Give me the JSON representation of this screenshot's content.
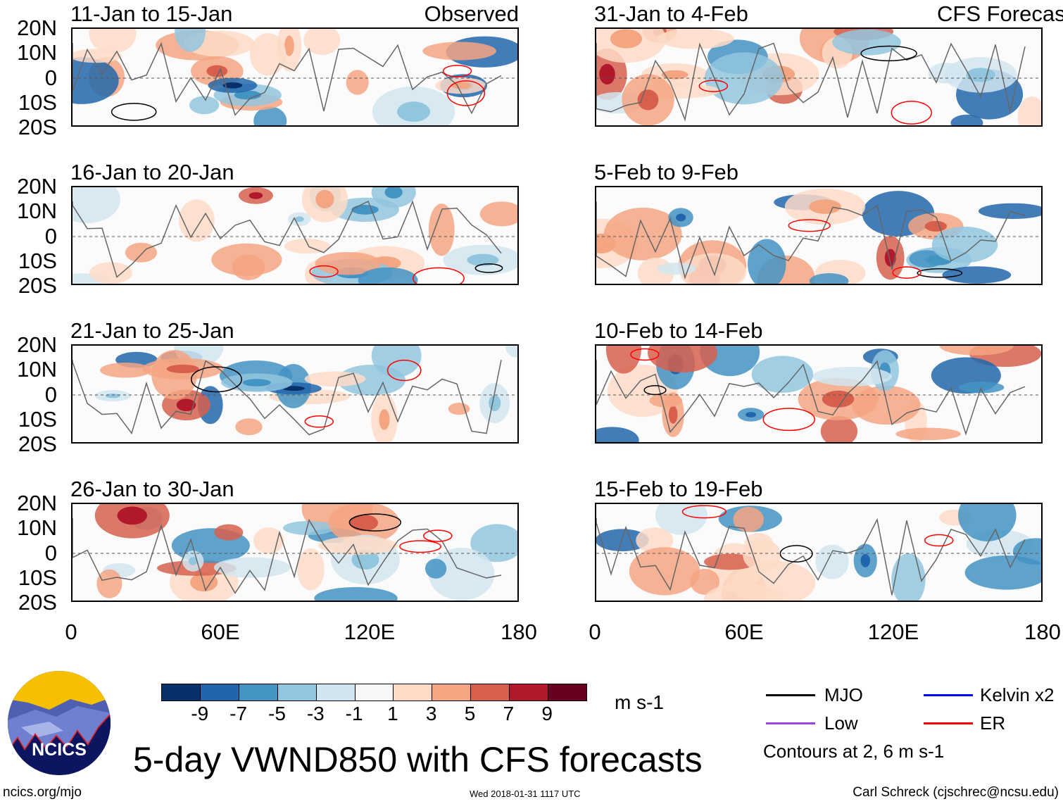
{
  "panels_left": [
    {
      "title": "11-Jan to 15-Jan",
      "label": "Observed"
    },
    {
      "title": "16-Jan to 20-Jan"
    },
    {
      "title": "21-Jan to 25-Jan"
    },
    {
      "title": "26-Jan to 30-Jan"
    }
  ],
  "panels_right": [
    {
      "title": "31-Jan to 4-Feb",
      "label": "CFS Forecast"
    },
    {
      "title": "5-Feb to 9-Feb"
    },
    {
      "title": "10-Feb to 14-Feb"
    },
    {
      "title": "15-Feb to 19-Feb"
    }
  ],
  "lat_ticks": [
    "20N",
    "10N",
    "0",
    "10S",
    "20S"
  ],
  "lon_ticks": [
    "0",
    "60E",
    "120E",
    "180"
  ],
  "colorbar": {
    "levels": [
      "-9",
      "-7",
      "-5",
      "-3",
      "-1",
      "1",
      "3",
      "5",
      "7",
      "9"
    ],
    "colors": [
      "#08306b",
      "#2166ac",
      "#4393c3",
      "#92c5de",
      "#d1e5f0",
      "#f7f7f7",
      "#fddbc7",
      "#f4a582",
      "#d6604d",
      "#b2182b",
      "#67001f"
    ],
    "units": "m s-1"
  },
  "legend": {
    "items": [
      {
        "label": "MJO",
        "color": "#000000"
      },
      {
        "label": "Kelvin x2",
        "color": "#0000ff"
      },
      {
        "label": "Low",
        "color": "#a040e0"
      },
      {
        "label": "ER",
        "color": "#ff0000"
      }
    ],
    "contours_note": "Contours at 2, 6 m s-1"
  },
  "logo_text": "NCICS",
  "main_title": "5-day VWND850 with CFS forecasts",
  "footer": {
    "url": "ncics.org/mjo",
    "timestamp": "Wed 2018-01-31 1117 UTC",
    "credit": "Carl Schreck (cjschrec@ncsu.edu)"
  }
}
